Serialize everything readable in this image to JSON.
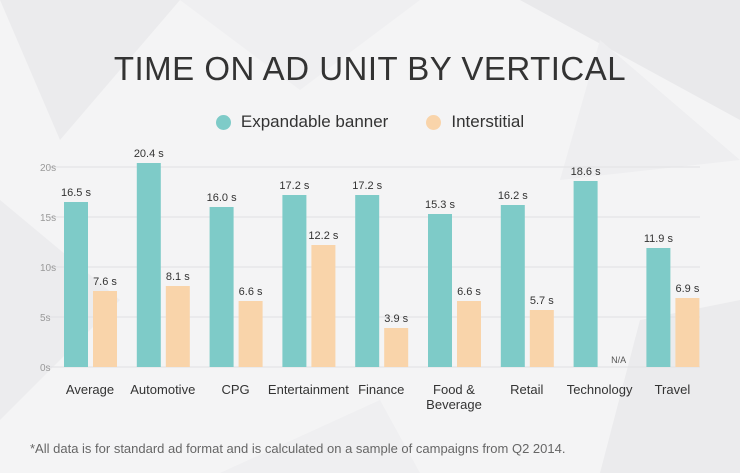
{
  "chart_data": {
    "type": "bar",
    "title": "TIME ON AD UNIT BY VERTICAL",
    "categories": [
      "Average",
      "Automotive",
      "CPG",
      "Entertainment",
      "Finance",
      "Food &\nBeverage",
      "Retail",
      "Technology",
      "Travel"
    ],
    "series": [
      {
        "name": "Expandable banner",
        "color": "#7ecbc8",
        "values": [
          16.5,
          20.4,
          16.0,
          17.2,
          17.2,
          15.3,
          16.2,
          18.6,
          11.9
        ],
        "labels": [
          "16.5 s",
          "20.4 s",
          "16.0 s",
          "17.2 s",
          "17.2 s",
          "15.3 s",
          "16.2 s",
          "18.6 s",
          "11.9 s"
        ]
      },
      {
        "name": "Interstitial",
        "color": "#f9d4aa",
        "values": [
          7.6,
          8.1,
          6.6,
          12.2,
          3.9,
          6.6,
          5.7,
          null,
          6.9
        ],
        "labels": [
          "7.6 s",
          "8.1 s",
          "6.6 s",
          "12.2 s",
          "3.9 s",
          "6.6 s",
          "5.7 s",
          "N/A",
          "6.9 s"
        ]
      }
    ],
    "yticks": [
      "0s",
      "5s",
      "10s",
      "15s",
      "20s"
    ],
    "ytick_values": [
      0,
      5,
      10,
      15,
      20
    ],
    "ylim": [
      0,
      20
    ],
    "xlabel": "",
    "ylabel": "",
    "legend_position": "top-center"
  },
  "footnote": "*All data is for standard ad format and is calculated on a sample of campaigns from Q2 2014."
}
